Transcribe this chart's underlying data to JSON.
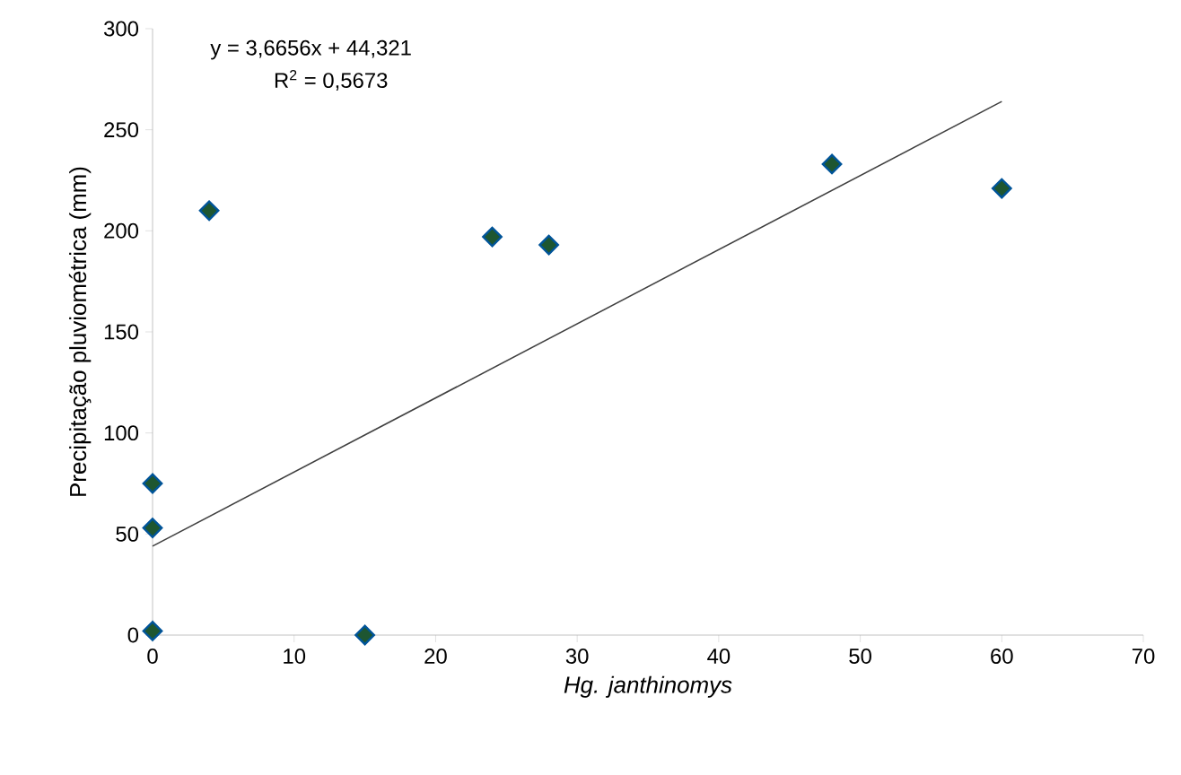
{
  "chart_data": {
    "type": "scatter",
    "xlabel": "Hg. janthinomys",
    "ylabel": "Precipitação pluviométrica (mm)",
    "xlim": [
      0,
      70
    ],
    "xticks": [
      0,
      10,
      20,
      30,
      40,
      50,
      60,
      70
    ],
    "ylim": [
      0,
      300
    ],
    "yticks": [
      0,
      50,
      100,
      150,
      200,
      250,
      300
    ],
    "grid": false,
    "annotations": [
      "y = 3,6656x + 44,321",
      "R$^{2}$ = 0,5673"
    ],
    "series": [
      {
        "marker": "diamond",
        "color": "#1e5631",
        "x": [
          0,
          0,
          0,
          4,
          15,
          24,
          28,
          48,
          60
        ],
        "values": [
          75,
          53,
          2,
          210,
          0,
          197,
          193,
          233,
          221
        ]
      },
      {
        "type": "line",
        "marker": "none",
        "line_style": "solid",
        "color": "#404040",
        "x": [
          0,
          60
        ],
        "values": [
          44,
          264
        ]
      }
    ]
  }
}
